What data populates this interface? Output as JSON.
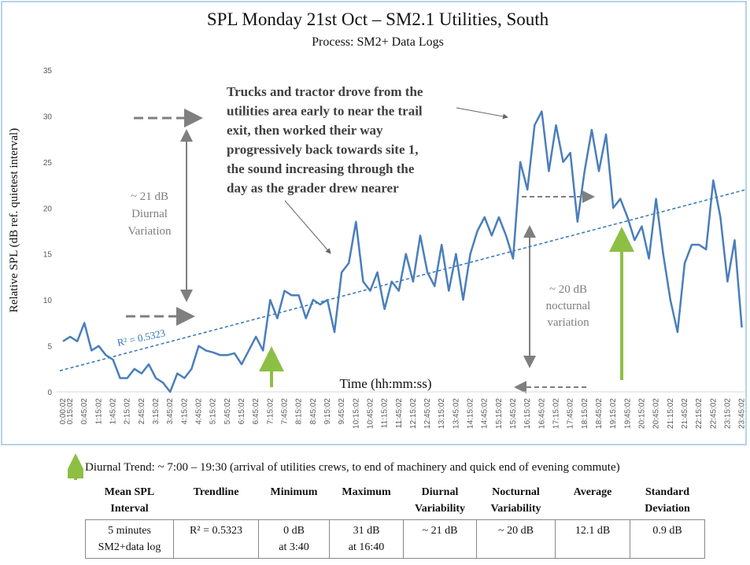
{
  "chart_data": {
    "type": "line",
    "title": "SPL Monday 21st Oct – SM2.1 Utilities, South",
    "subtitle": "Process:  SM2+ Data Logs",
    "y_label": "Relative SPL (dB ref. quietest interval)",
    "x_label": "Time (hh:mm:ss)",
    "color": "#4a7ebb",
    "categories": [
      "0:00:02",
      "0:15:02",
      null,
      "0:45:02",
      null,
      "1:15:02",
      null,
      "1:45:02",
      null,
      "2:15:02",
      null,
      "2:45:02",
      null,
      "3:15:02",
      null,
      "3:45:02",
      null,
      "4:15:02",
      null,
      "4:45:02",
      null,
      "5:15:02",
      null,
      "5:45:02",
      null,
      "6:15:02",
      null,
      "6:45:02",
      null,
      "7:15:02",
      null,
      "7:45:02",
      null,
      "8:15:02",
      null,
      "8:45:02",
      null,
      "9:15:02",
      null,
      "9:45:02",
      null,
      "10:15:02",
      null,
      "10:45:02",
      null,
      "11:15:02",
      null,
      "11:45:02",
      null,
      "12:15:02",
      null,
      "12:45:02",
      null,
      "13:15:02",
      null,
      "13:45:02",
      null,
      "14:15:02",
      null,
      "14:45:02",
      null,
      "15:15:02",
      null,
      "15:45:02",
      null,
      "16:15:02",
      null,
      "16:45:02",
      null,
      "17:15:02",
      null,
      "17:45:02",
      null,
      "18:15:02",
      null,
      "18:45:02",
      null,
      "19:15:02",
      null,
      "19:45:02",
      null,
      "20:15:02",
      null,
      "20:45:02",
      null,
      "21:15:02",
      null,
      "21:45:02",
      null,
      "22:15:02",
      null,
      "22:45:02",
      null,
      "23:15:02",
      null,
      "23:45:02"
    ],
    "values": [
      5.5,
      6,
      5.5,
      7.5,
      4.5,
      5,
      4,
      3.5,
      1.5,
      1.5,
      2.5,
      2,
      3,
      1.5,
      1,
      0,
      2,
      1.5,
      2.5,
      5,
      4.5,
      4.3,
      4,
      4,
      4.2,
      3,
      4.5,
      6,
      4.5,
      10,
      8,
      11,
      10.5,
      10.5,
      8,
      10,
      9.5,
      10,
      6.5,
      13,
      14,
      18.5,
      12,
      11,
      13,
      9,
      12,
      11,
      15,
      12,
      17,
      13,
      11.5,
      16,
      11,
      15,
      10,
      15,
      17.5,
      19,
      17,
      19,
      17,
      14.5,
      25,
      22,
      29,
      30.5,
      24,
      29,
      25,
      26,
      18.5,
      24,
      28.5,
      24,
      28,
      20,
      21,
      19,
      16.5,
      18,
      14.5,
      21,
      15,
      10,
      6.5,
      14,
      16,
      16,
      15.5,
      23,
      19,
      12,
      16.5,
      7
    ],
    "ylim": [
      0,
      35
    ],
    "yticks": [
      0,
      5,
      10,
      15,
      20,
      25,
      30,
      35
    ],
    "trendline": {
      "start": 2.3,
      "end": 22,
      "label": "R² = 0.5323",
      "color": "#2e75b6"
    },
    "annotations": {
      "main": [
        "Trucks and tractor drove from the",
        "utilities area early to near the trail",
        "exit, then worked their way",
        "progressively back towards site 1,",
        "the sound increasing through the",
        "day as the grader drew nearer"
      ],
      "diurnal": [
        "~ 21 dB",
        "Diurnal",
        "Variation"
      ],
      "nocturnal": [
        "~ 20 dB",
        "nocturnal",
        "variation"
      ]
    }
  },
  "footnote": "Diurnal Trend: ~ 7:00 – 19:30 (arrival of utilities crews, to end of machinery and quick end of evening commute)",
  "table": {
    "headers": [
      [
        "Mean SPL",
        "Interval"
      ],
      [
        "Trendline"
      ],
      [
        "Minimum"
      ],
      [
        "Maximum"
      ],
      [
        "Diurnal",
        "Variability"
      ],
      [
        "Nocturnal",
        "Variability"
      ],
      [
        "Average"
      ],
      [
        "Standard",
        "Deviation"
      ]
    ],
    "rows": [
      [
        [
          "5 minutes",
          "SM2+data log"
        ],
        [
          "R² = 0.5323"
        ],
        [
          "0 dB",
          "at 3:40"
        ],
        [
          "31 dB",
          "at 16:40"
        ],
        [
          "~ 21 dB"
        ],
        [
          "~ 20 dB"
        ],
        [
          "12.1 dB"
        ],
        [
          "0.9 dB"
        ]
      ]
    ]
  }
}
